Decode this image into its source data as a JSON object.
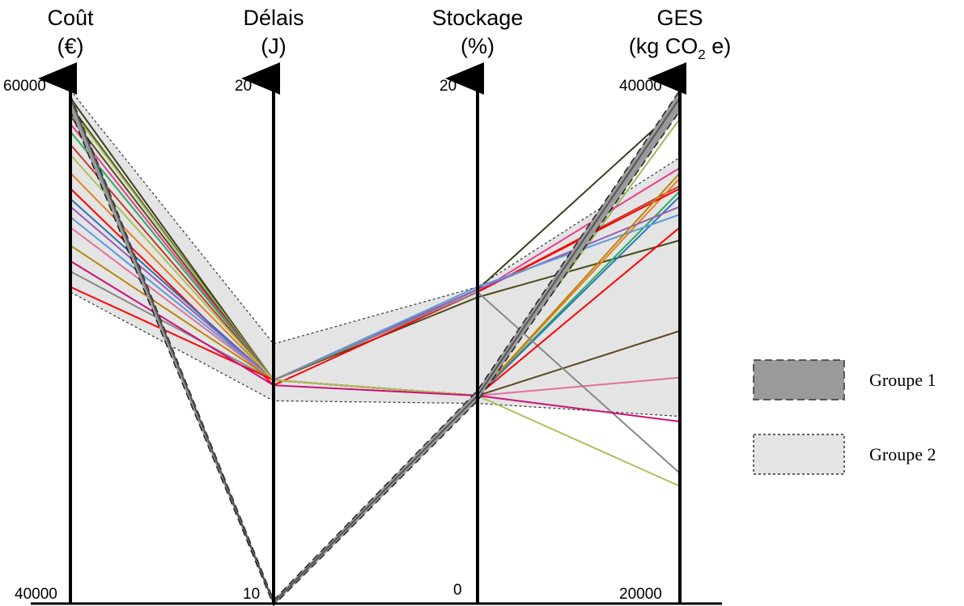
{
  "chart_data": {
    "type": "parallel-coordinates",
    "axes": [
      {
        "title_line1": "Coût",
        "title_line2": "(€)",
        "min": 40000,
        "max": 60000,
        "min_label": "40000",
        "max_label": "60000"
      },
      {
        "title_line1": "Délais",
        "title_line2": "(J)",
        "min": 10,
        "max": 20,
        "min_label": "10",
        "max_label": "20"
      },
      {
        "title_line1": "Stockage",
        "title_line2": "(%)",
        "min": 0,
        "max": 20,
        "min_label": "0",
        "max_label": "20"
      },
      {
        "title_line1": "GES",
        "title_line2_pre": "(kg CO",
        "title_line2_sub": "2",
        "title_line2_post": " e)",
        "min": 20000,
        "max": 40000,
        "min_label": "20000",
        "max_label": "40000"
      }
    ],
    "groups": [
      {
        "name": "Groupe 1",
        "fill": "#9a9a9a",
        "band_upper": [
          59600,
          10.05,
          8.2,
          39800
        ],
        "band_lower": [
          59000,
          9.95,
          7.8,
          39000
        ],
        "lines": [
          {
            "values": [
              59500,
              10.0,
              8.0,
              39500
            ],
            "color": "#555555"
          }
        ]
      },
      {
        "name": "Groupe 2",
        "fill": "#e4e4e4",
        "band_upper": [
          59800,
          15.0,
          12.2,
          37200
        ],
        "band_lower": [
          52000,
          13.9,
          7.7,
          27200
        ],
        "lines": [
          {
            "values": [
              59500,
              14.3,
              12.1,
              39200
            ],
            "color": "#3d3d1f"
          },
          {
            "values": [
              59200,
              14.3,
              11.8,
              34000
            ],
            "color": "#4a4a1a"
          },
          {
            "values": [
              59100,
              14.3,
              8.0,
              38700
            ],
            "color": "#9bbb59"
          },
          {
            "values": [
              58800,
              14.3,
              8.0,
              30500
            ],
            "color": "#5b4a1f"
          },
          {
            "values": [
              58500,
              14.3,
              12.0,
              36800
            ],
            "color": "#e83e8c"
          },
          {
            "values": [
              58200,
              14.3,
              8.0,
              35900
            ],
            "color": "#27ae60"
          },
          {
            "values": [
              57700,
              14.3,
              12.0,
              36100
            ],
            "color": "#c0392b"
          },
          {
            "values": [
              56600,
              14.3,
              8.0,
              36400
            ],
            "color": "#e67e22"
          },
          {
            "values": [
              56000,
              14.2,
              12.0,
              36000
            ],
            "color": "#ff0000"
          },
          {
            "values": [
              55600,
              14.3,
              8.0,
              35700
            ],
            "color": "#2e75b6"
          },
          {
            "values": [
              55300,
              14.3,
              12.1,
              35300
            ],
            "color": "#9b59b6"
          },
          {
            "values": [
              54900,
              14.3,
              12.2,
              35000
            ],
            "color": "#5b9bd5"
          },
          {
            "values": [
              54500,
              14.3,
              8.0,
              28700
            ],
            "color": "#e0709b"
          },
          {
            "values": [
              53800,
              14.3,
              8.0,
              36600
            ],
            "color": "#b8860b"
          },
          {
            "values": [
              52800,
              14.3,
              12.0,
              25000
            ],
            "color": "#888888"
          },
          {
            "values": [
              52200,
              14.3,
              8.0,
              34500
            ],
            "color": "#ff0000"
          },
          {
            "values": [
              57300,
              14.3,
              8.0,
              24500
            ],
            "color": "#a6c45a"
          },
          {
            "values": [
              53200,
              14.2,
              8.0,
              27000
            ],
            "color": "#cc1177"
          }
        ]
      }
    ],
    "legend": [
      {
        "label": "Groupe 1",
        "fill": "#9a9a9a",
        "stroke": "#333333",
        "dash": "9,5"
      },
      {
        "label": "Groupe 2",
        "fill": "#e4e4e4",
        "stroke": "#333333",
        "dash": "3,3"
      }
    ],
    "legend_position": "right"
  }
}
